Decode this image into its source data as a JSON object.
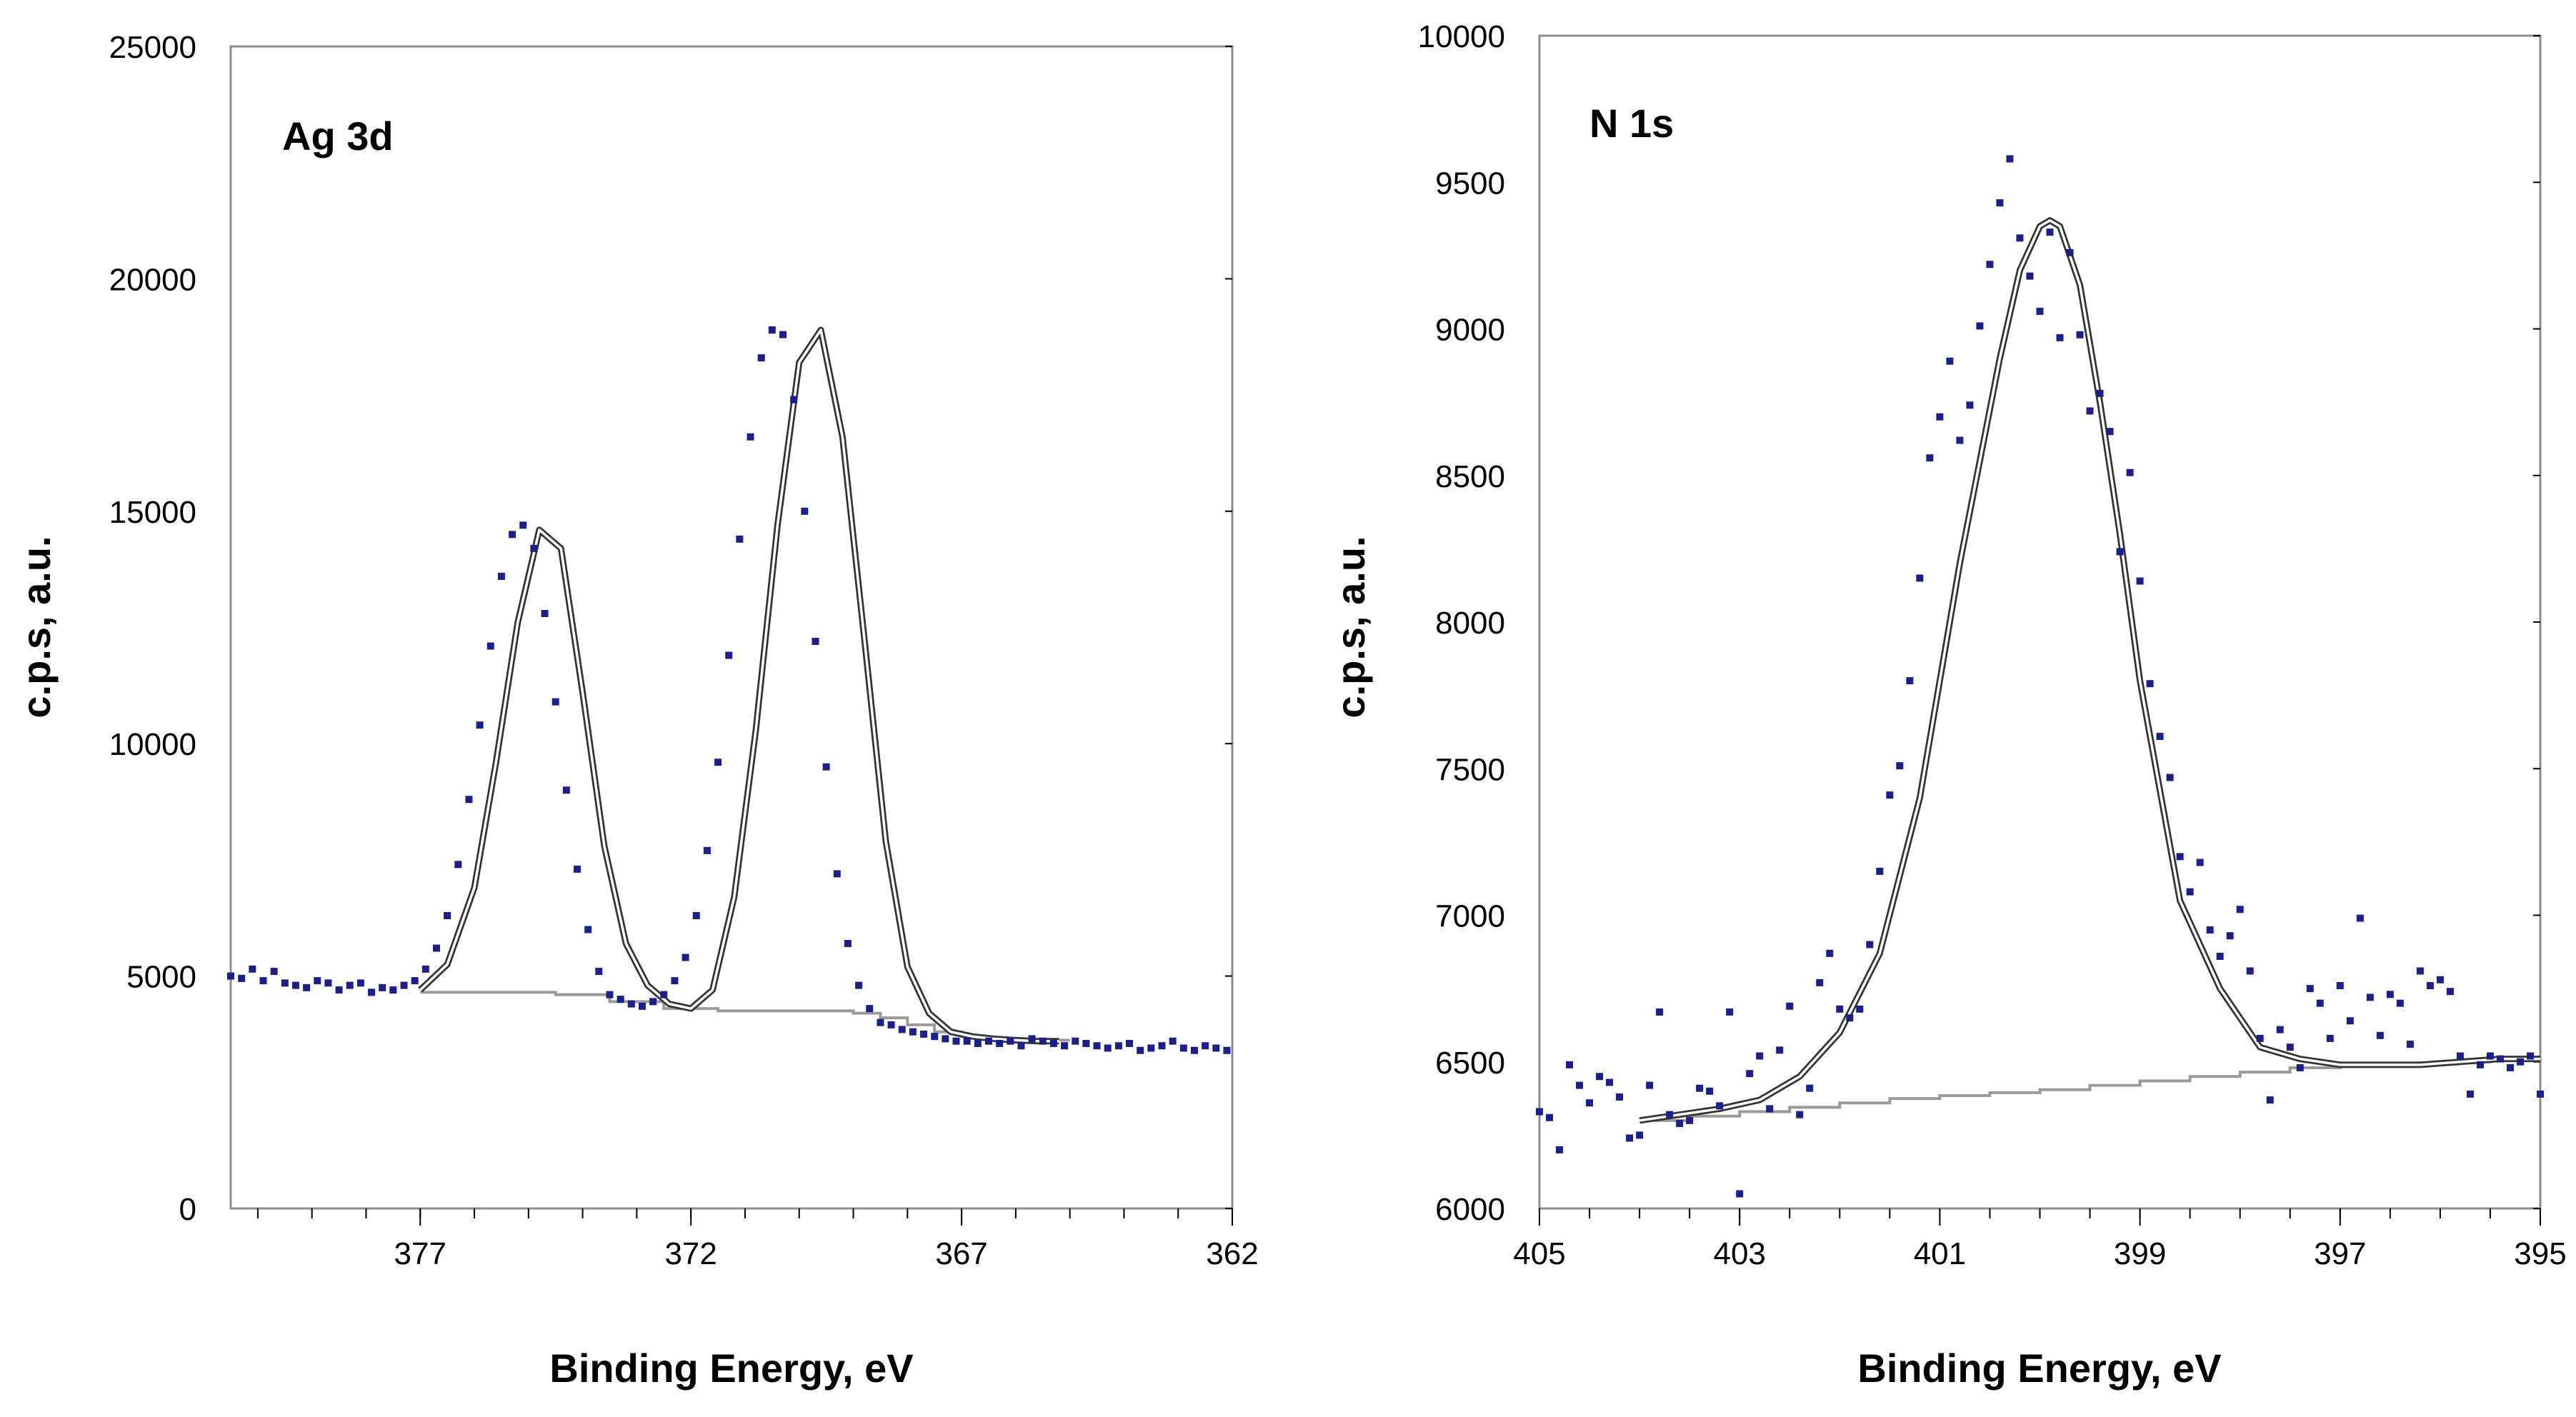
{
  "chart_data": [
    {
      "type": "scatter",
      "panel_label": "Ag 3d",
      "xlabel": "Binding Energy, eV",
      "ylabel": "c.p.s, a.u.",
      "xlim": [
        380.5,
        362
      ],
      "ylim": [
        0,
        25000
      ],
      "x_reversed": true,
      "x_ticks": [
        377,
        372,
        367,
        362
      ],
      "y_ticks": [
        0,
        5000,
        10000,
        15000,
        20000,
        25000
      ],
      "grid": false,
      "legend": "none",
      "colors": {
        "points": "#1a1f8c",
        "envelope": "#333333",
        "envelope_inner": "#ffffff",
        "background": "#9a9a9a"
      },
      "series": [
        {
          "role": "data-points",
          "x": [
            380.5,
            380.3,
            380.1,
            379.9,
            379.7,
            379.5,
            379.3,
            379.1,
            378.9,
            378.7,
            378.5,
            378.3,
            378.1,
            377.9,
            377.7,
            377.5,
            377.3,
            377.1,
            376.9,
            376.7,
            376.5,
            376.3,
            376.1,
            375.9,
            375.7,
            375.5,
            375.3,
            375.1,
            374.9,
            374.7,
            374.5,
            374.3,
            374.1,
            373.9,
            373.7,
            373.5,
            373.3,
            373.1,
            372.9,
            372.7,
            372.5,
            372.3,
            372.1,
            371.9,
            371.7,
            371.5,
            371.3,
            371.1,
            370.9,
            370.7,
            370.5,
            370.3,
            370.1,
            369.9,
            369.7,
            369.5,
            369.3,
            369.1,
            368.9,
            368.7,
            368.5,
            368.3,
            368.1,
            367.9,
            367.7,
            367.5,
            367.3,
            367.1,
            366.9,
            366.7,
            366.5,
            366.3,
            366.1,
            365.9,
            365.7,
            365.5,
            365.3,
            365.1,
            364.9,
            364.7,
            364.5,
            364.3,
            364.1,
            363.9,
            363.7,
            363.5,
            363.3,
            363.1,
            362.9,
            362.7,
            362.5,
            362.3,
            362.1
          ],
          "y": [
            5000,
            4950,
            5150,
            4900,
            5100,
            4850,
            4800,
            4750,
            4900,
            4850,
            4700,
            4800,
            4850,
            4650,
            4750,
            4700,
            4800,
            4900,
            5150,
            5600,
            6300,
            7400,
            8800,
            10400,
            12100,
            13600,
            14500,
            14700,
            14200,
            12800,
            10900,
            9000,
            7300,
            6000,
            5100,
            4600,
            4500,
            4400,
            4350,
            4450,
            4600,
            4900,
            5400,
            6300,
            7700,
            9600,
            11900,
            14400,
            16600,
            18300,
            18900,
            18800,
            17400,
            15000,
            12200,
            9500,
            7200,
            5700,
            4800,
            4300,
            4000,
            3950,
            3850,
            3800,
            3750,
            3700,
            3650,
            3600,
            3600,
            3550,
            3600,
            3550,
            3600,
            3500,
            3650,
            3600,
            3550,
            3500,
            3600,
            3550,
            3500,
            3450,
            3500,
            3550,
            3400,
            3450,
            3500,
            3600,
            3450,
            3400,
            3500,
            3450,
            3400
          ]
        },
        {
          "role": "fit-envelope",
          "x": [
            377.0,
            376.5,
            376.0,
            375.6,
            375.2,
            374.8,
            374.4,
            374.0,
            373.6,
            373.2,
            372.8,
            372.4,
            372.0,
            371.6,
            371.2,
            370.8,
            370.4,
            370.0,
            369.6,
            369.2,
            368.8,
            368.4,
            368.0,
            367.6,
            367.2,
            366.8,
            366.4,
            366.0,
            365.6,
            365.2
          ],
          "y": [
            4700,
            5250,
            6900,
            9600,
            12600,
            14600,
            14200,
            11100,
            7800,
            5700,
            4800,
            4400,
            4300,
            4700,
            6700,
            10300,
            14700,
            18200,
            18900,
            16600,
            12300,
            7900,
            5200,
            4200,
            3800,
            3700,
            3650,
            3620,
            3600,
            3600
          ]
        },
        {
          "role": "background",
          "x": [
            377.0,
            375.5,
            374.5,
            373.5,
            372.5,
            371.5,
            370.5,
            369.5,
            369.0,
            368.5,
            368.0,
            367.5,
            367.0,
            366.5,
            366.0,
            365.5,
            365.0
          ],
          "y": [
            4650,
            4650,
            4600,
            4450,
            4300,
            4250,
            4250,
            4250,
            4200,
            4100,
            3950,
            3800,
            3700,
            3650,
            3630,
            3620,
            3620
          ]
        }
      ]
    },
    {
      "type": "scatter",
      "panel_label": "N 1s",
      "xlabel": "Binding Energy, eV",
      "ylabel": "c.p.s, a.u.",
      "xlim": [
        405,
        395
      ],
      "ylim": [
        6000,
        10000
      ],
      "x_reversed": true,
      "x_ticks": [
        405,
        403,
        401,
        399,
        397,
        395
      ],
      "y_ticks": [
        6000,
        6500,
        7000,
        7500,
        8000,
        8500,
        9000,
        9500,
        10000
      ],
      "grid": false,
      "legend": "none",
      "colors": {
        "points": "#1a1f8c",
        "envelope": "#333333",
        "envelope_inner": "#ffffff",
        "background": "#9a9a9a"
      },
      "series": [
        {
          "role": "data-points",
          "x": [
            405.0,
            404.9,
            404.8,
            404.7,
            404.6,
            404.5,
            404.4,
            404.3,
            404.2,
            404.1,
            404.0,
            403.9,
            403.8,
            403.7,
            403.6,
            403.5,
            403.4,
            403.3,
            403.2,
            403.1,
            403.0,
            402.9,
            402.8,
            402.7,
            402.6,
            402.5,
            402.4,
            402.3,
            402.2,
            402.1,
            402.0,
            401.9,
            401.8,
            401.7,
            401.6,
            401.5,
            401.4,
            401.3,
            401.2,
            401.1,
            401.0,
            400.9,
            400.8,
            400.7,
            400.6,
            400.5,
            400.4,
            400.3,
            400.2,
            400.1,
            400.0,
            399.9,
            399.8,
            399.7,
            399.6,
            399.5,
            399.4,
            399.3,
            399.2,
            399.1,
            399.0,
            398.9,
            398.8,
            398.7,
            398.6,
            398.5,
            398.4,
            398.3,
            398.2,
            398.1,
            398.0,
            397.9,
            397.8,
            397.7,
            397.6,
            397.5,
            397.4,
            397.3,
            397.2,
            397.1,
            397.0,
            396.9,
            396.8,
            396.7,
            396.6,
            396.5,
            396.4,
            396.3,
            396.2,
            396.1,
            396.0,
            395.9,
            395.8,
            395.7,
            395.6,
            395.5,
            395.4,
            395.3,
            395.2,
            395.1,
            395.0
          ],
          "y": [
            6330,
            6310,
            6200,
            6490,
            6420,
            6360,
            6450,
            6430,
            6380,
            6240,
            6250,
            6420,
            6670,
            6320,
            6290,
            6300,
            6410,
            6400,
            6350,
            6670,
            6050,
            6460,
            6520,
            6340,
            6540,
            6690,
            6320,
            6410,
            6770,
            6870,
            6680,
            6650,
            6680,
            6900,
            7150,
            7410,
            7510,
            7800,
            8150,
            8560,
            8700,
            8890,
            8620,
            8740,
            9010,
            9220,
            9430,
            9580,
            9310,
            9180,
            9060,
            9330,
            8970,
            9260,
            8980,
            8720,
            8780,
            8650,
            8240,
            8510,
            8140,
            7790,
            7610,
            7470,
            7200,
            7080,
            7180,
            6950,
            6860,
            6930,
            7020,
            6810,
            6580,
            6370,
            6610,
            6550,
            6480,
            6750,
            6700,
            6580,
            6760,
            6640,
            6990,
            6720,
            6590,
            6730,
            6700,
            6560,
            6810,
            6760,
            6780,
            6740,
            6520,
            6390,
            6490,
            6520,
            6510,
            6480,
            6500,
            6520,
            6390
          ]
        },
        {
          "role": "fit-envelope",
          "x": [
            404.0,
            403.6,
            403.2,
            402.8,
            402.4,
            402.0,
            401.6,
            401.2,
            400.8,
            400.4,
            400.2,
            400.0,
            399.9,
            399.8,
            399.6,
            399.4,
            399.2,
            399.0,
            398.6,
            398.2,
            397.8,
            397.4,
            397.0,
            396.6,
            396.2,
            395.8,
            395.4,
            395.0
          ],
          "y": [
            6300,
            6320,
            6340,
            6370,
            6450,
            6600,
            6870,
            7400,
            8200,
            8900,
            9200,
            9350,
            9370,
            9350,
            9150,
            8750,
            8300,
            7800,
            7050,
            6750,
            6550,
            6510,
            6490,
            6490,
            6490,
            6500,
            6510,
            6510
          ]
        },
        {
          "role": "background",
          "x": [
            404.0,
            403.5,
            403.0,
            402.5,
            402.0,
            401.5,
            401.0,
            400.5,
            400.0,
            399.5,
            399.0,
            398.5,
            398.0,
            397.5,
            397.0,
            396.5,
            396.0,
            395.5,
            395.0
          ],
          "y": [
            6300,
            6315,
            6330,
            6345,
            6360,
            6375,
            6385,
            6395,
            6405,
            6420,
            6435,
            6450,
            6465,
            6480,
            6490,
            6495,
            6500,
            6505,
            6510
          ]
        }
      ]
    }
  ]
}
